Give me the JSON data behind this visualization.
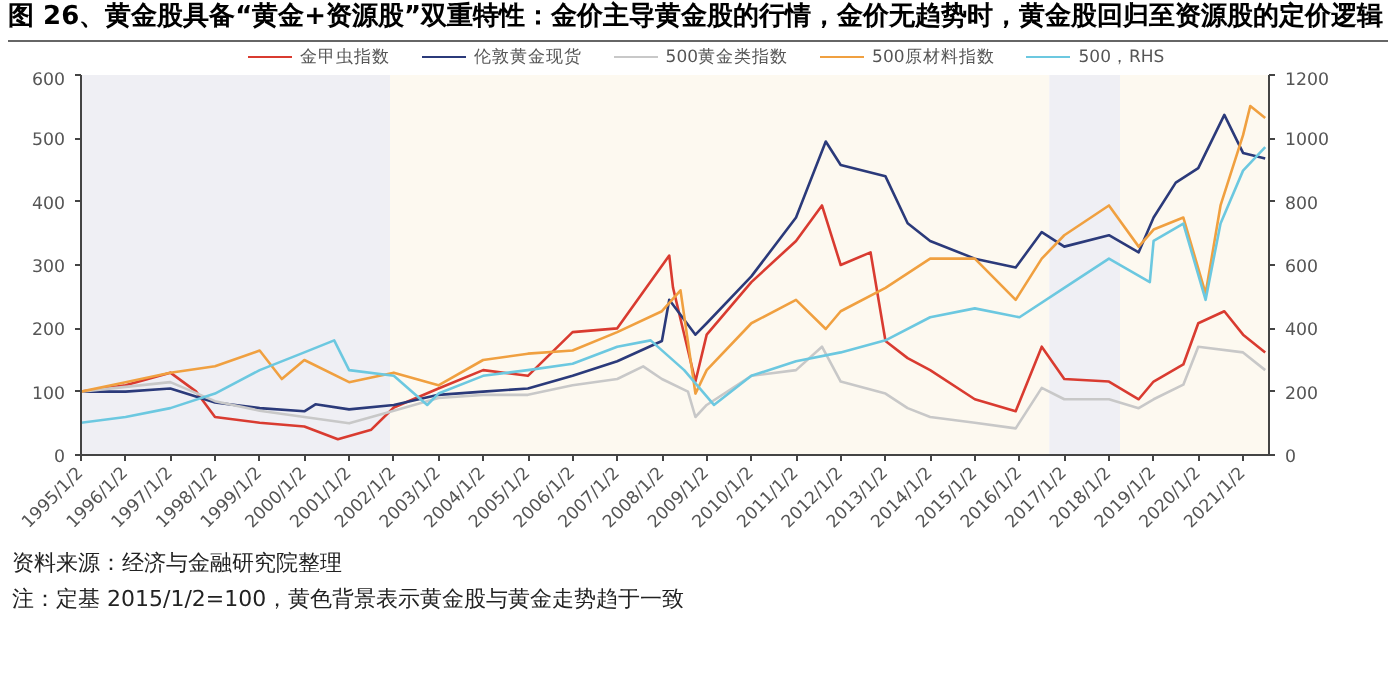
{
  "chart_data": {
    "type": "line",
    "title": "图 26、黄金股具备“黄金+资源股”双重特性：金价主导黄金股的行情，金价无趋势时，黄金股回归至资源股的定价逻辑",
    "annotations": [
      "资料来源：经济与金融研究院整理",
      "注：定基 2015/1/2=100，黄色背景表示黄金股与黄金走势趋于一致"
    ],
    "xlim": [
      "1995-01-02",
      "2021-08-01"
    ],
    "xticks": [
      {
        "value": "1995-01-02",
        "label": "1995/1/2"
      },
      {
        "value": "1996-01-02",
        "label": "1996/1/2"
      },
      {
        "value": "1997-01-02",
        "label": "1997/1/2"
      },
      {
        "value": "1998-01-02",
        "label": "1998/1/2"
      },
      {
        "value": "1999-01-02",
        "label": "1999/1/2"
      },
      {
        "value": "2000-01-02",
        "label": "2000/1/2"
      },
      {
        "value": "2001-01-02",
        "label": "2001/1/2"
      },
      {
        "value": "2002-01-02",
        "label": "2002/1/2"
      },
      {
        "value": "2003-01-02",
        "label": "2003/1/2"
      },
      {
        "value": "2004-01-02",
        "label": "2004/1/2"
      },
      {
        "value": "2005-01-02",
        "label": "2005/1/2"
      },
      {
        "value": "2006-01-02",
        "label": "2006/1/2"
      },
      {
        "value": "2007-01-02",
        "label": "2007/1/2"
      },
      {
        "value": "2008-01-02",
        "label": "2008/1/2"
      },
      {
        "value": "2009-01-02",
        "label": "2009/1/2"
      },
      {
        "value": "2010-01-02",
        "label": "2010/1/2"
      },
      {
        "value": "2011-01-02",
        "label": "2011/1/2"
      },
      {
        "value": "2012-01-02",
        "label": "2012/1/2"
      },
      {
        "value": "2013-01-02",
        "label": "2013/1/2"
      },
      {
        "value": "2014-01-02",
        "label": "2014/1/2"
      },
      {
        "value": "2015-01-02",
        "label": "2015/1/2"
      },
      {
        "value": "2016-01-02",
        "label": "2016/1/2"
      },
      {
        "value": "2017-01-02",
        "label": "2017/1/2"
      },
      {
        "value": "2018-01-02",
        "label": "2018/1/2"
      },
      {
        "value": "2019-01-02",
        "label": "2019/1/2"
      },
      {
        "value": "2020-01-02",
        "label": "2020/1/2"
      },
      {
        "value": "2021-01-02",
        "label": "2021/1/2"
      }
    ],
    "ylim": [
      0,
      600
    ],
    "yticks": [
      0,
      100,
      200,
      300,
      400,
      500,
      600
    ],
    "y2lim": [
      0,
      1200
    ],
    "y2ticks": [
      0,
      200,
      400,
      600,
      800,
      1000,
      1200
    ],
    "grid": false,
    "legend": "top",
    "marker": "none",
    "line_style": "solid",
    "bands": [
      {
        "axis": "x",
        "from": "1995-01-02",
        "to": "2001-12-01",
        "color": "#efeff4"
      },
      {
        "axis": "x",
        "from": "2001-12-01",
        "to": "2016-09-01",
        "color": "#fdf9f0"
      },
      {
        "axis": "x",
        "from": "2016-09-01",
        "to": "2018-04-01",
        "color": "#efeff4"
      },
      {
        "axis": "x",
        "from": "2018-04-01",
        "to": "2021-08-01",
        "color": "#fdf9f0"
      }
    ],
    "series": [
      {
        "name": "金甲虫指数",
        "color": "#d93b30",
        "x": [
          "1995-01-02",
          "1996-01",
          "1997-01",
          "1997-08",
          "1998-01",
          "1999-01",
          "2000-01",
          "2000-10",
          "2001-07",
          "2002-01",
          "2003-01",
          "2004-01",
          "2005-01",
          "2006-01",
          "2007-01",
          "2008-03",
          "2008-04",
          "2008-10",
          "2009-01",
          "2010-01",
          "2011-01",
          "2011-08",
          "2012-01",
          "2012-09",
          "2013-01",
          "2013-07",
          "2014-01",
          "2015-01",
          "2015-12",
          "2016-07",
          "2017-01",
          "2018-01",
          "2018-09",
          "2019-01",
          "2019-09",
          "2020-01",
          "2020-08",
          "2021-01",
          "2021-07"
        ],
        "values": [
          100,
          110,
          130,
          100,
          60,
          51,
          45,
          25,
          40,
          75,
          105,
          134,
          125,
          194,
          200,
          315,
          264,
          116,
          190,
          273,
          338,
          394,
          300,
          320,
          180,
          153,
          134,
          88,
          69,
          171,
          120,
          116,
          88,
          116,
          143,
          208,
          227,
          190,
          162
        ]
      },
      {
        "name": "伦敦黄金现货",
        "color": "#2b3a7a",
        "x": [
          "1995-01-02",
          "1996-01",
          "1997-01",
          "1998-01",
          "1999-01",
          "2000-01",
          "2000-04",
          "2001-01",
          "2002-01",
          "2003-01",
          "2004-01",
          "2005-01",
          "2006-01",
          "2007-01",
          "2008-01",
          "2008-03",
          "2008-10",
          "2009-01",
          "2010-01",
          "2011-01",
          "2011-09",
          "2012-01",
          "2013-01",
          "2013-07",
          "2014-01",
          "2015-01",
          "2015-12",
          "2016-07",
          "2017-01",
          "2018-01",
          "2018-09",
          "2019-01",
          "2019-07",
          "2020-01",
          "2020-08",
          "2021-01",
          "2021-07"
        ],
        "values": [
          100,
          100,
          105,
          83,
          74,
          69,
          80,
          72,
          79,
          95,
          100,
          105,
          125,
          148,
          180,
          245,
          190,
          208,
          282,
          375,
          495,
          458,
          440,
          366,
          338,
          310,
          296,
          352,
          329,
          347,
          320,
          375,
          430,
          453,
          537,
          477,
          468
        ]
      },
      {
        "name": "500黄金类指数",
        "color": "#c8c8c8",
        "x": [
          "1995-01-02",
          "1997-01",
          "1998-01",
          "1999-01",
          "2000-01",
          "2001-01",
          "2002-01",
          "2003-01",
          "2004-01",
          "2005-01",
          "2006-01",
          "2007-01",
          "2007-08",
          "2008-01",
          "2008-08",
          "2008-10",
          "2009-01",
          "2010-01",
          "2011-01",
          "2011-08",
          "2012-01",
          "2013-01",
          "2013-07",
          "2014-01",
          "2015-01",
          "2015-12",
          "2016-07",
          "2017-01",
          "2018-01",
          "2018-09",
          "2019-01",
          "2019-09",
          "2020-01",
          "2021-01",
          "2021-07"
        ],
        "values": [
          100,
          115,
          85,
          70,
          60,
          50,
          70,
          90,
          95,
          95,
          110,
          120,
          140,
          120,
          100,
          60,
          79,
          125,
          134,
          171,
          116,
          97,
          74,
          60,
          51,
          42,
          106,
          88,
          88,
          74,
          88,
          111,
          171,
          162,
          134
        ]
      },
      {
        "name": "500原材料指数",
        "color": "#f0a040",
        "x": [
          "1995-01-02",
          "1996-01",
          "1997-01",
          "1998-01",
          "1999-01",
          "1999-07",
          "2000-01",
          "2001-01",
          "2002-01",
          "2003-01",
          "2004-01",
          "2005-01",
          "2006-01",
          "2007-01",
          "2008-01",
          "2008-06",
          "2008-10",
          "2009-01",
          "2010-01",
          "2011-01",
          "2011-09",
          "2012-01",
          "2013-01",
          "2014-01",
          "2015-01",
          "2015-12",
          "2016-07",
          "2017-01",
          "2018-01",
          "2018-09",
          "2019-01",
          "2019-09",
          "2020-03",
          "2020-07",
          "2021-01",
          "2021-03",
          "2021-07"
        ],
        "values": [
          100,
          115,
          130,
          140,
          165,
          120,
          150,
          115,
          130,
          110,
          150,
          160,
          165,
          194,
          227,
          260,
          97,
          134,
          208,
          245,
          199,
          227,
          264,
          310,
          310,
          245,
          310,
          347,
          394,
          329,
          356,
          375,
          255,
          394,
          505,
          551,
          532
        ]
      },
      {
        "name": "500，RHS",
        "color": "#6cc8e0",
        "axis": "y2",
        "x": [
          "1995-01-02",
          "1996-01",
          "1997-01",
          "1998-01",
          "1999-01",
          "2000-01",
          "2000-09",
          "2001-01",
          "2002-01",
          "2002-10",
          "2003-01",
          "2004-01",
          "2005-01",
          "2006-01",
          "2007-01",
          "2007-10",
          "2008-07",
          "2009-03",
          "2010-01",
          "2011-01",
          "2012-01",
          "2013-01",
          "2014-01",
          "2015-01",
          "2016-01",
          "2017-01",
          "2018-01",
          "2018-12",
          "2019-01",
          "2019-09",
          "2020-03",
          "2020-07",
          "2021-01",
          "2021-07"
        ],
        "values": [
          102,
          120,
          148,
          194,
          268,
          324,
          362,
          268,
          250,
          158,
          194,
          250,
          268,
          288,
          342,
          362,
          268,
          158,
          250,
          296,
          324,
          362,
          435,
          463,
          435,
          528,
          620,
          546,
          676,
          731,
          490,
          731,
          898,
          972
        ]
      }
    ]
  }
}
